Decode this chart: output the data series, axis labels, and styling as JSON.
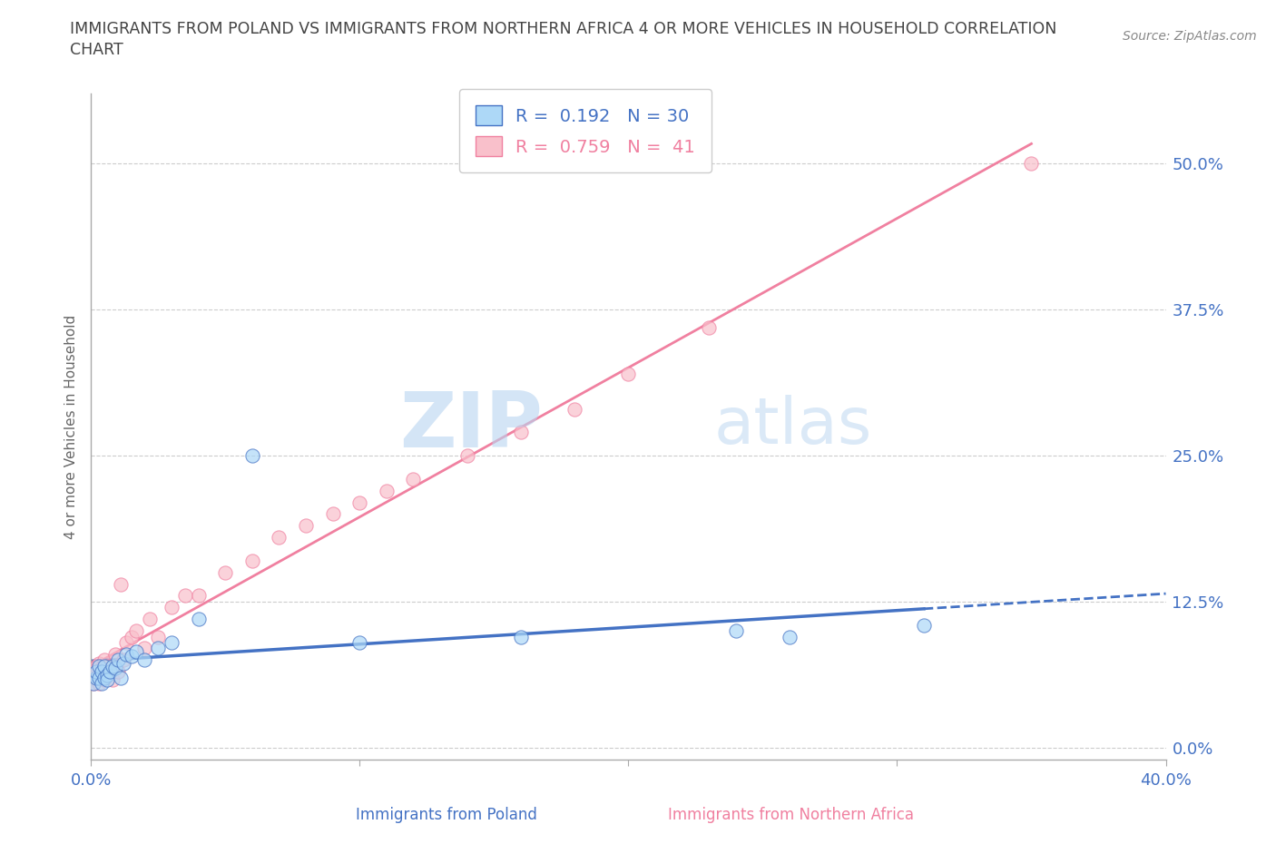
{
  "title_line1": "IMMIGRANTS FROM POLAND VS IMMIGRANTS FROM NORTHERN AFRICA 4 OR MORE VEHICLES IN HOUSEHOLD CORRELATION",
  "title_line2": "CHART",
  "source": "Source: ZipAtlas.com",
  "ylabel": "4 or more Vehicles in Household",
  "xlabel_poland": "Immigrants from Poland",
  "xlabel_africa": "Immigrants from Northern Africa",
  "xlim": [
    0.0,
    0.4
  ],
  "ylim": [
    -0.01,
    0.56
  ],
  "yticks": [
    0.0,
    0.125,
    0.25,
    0.375,
    0.5
  ],
  "ytick_labels": [
    "0.0%",
    "12.5%",
    "25.0%",
    "37.5%",
    "50.0%"
  ],
  "xtick_positions": [
    0.0,
    0.1,
    0.2,
    0.3,
    0.4
  ],
  "xtick_labels": [
    "0.0%",
    "",
    "",
    "",
    "40.0%"
  ],
  "R_poland": 0.192,
  "N_poland": 30,
  "R_africa": 0.759,
  "N_africa": 41,
  "color_poland": "#ADD8F7",
  "color_africa": "#F9C0CB",
  "line_color_poland": "#4472C4",
  "line_color_africa": "#F080A0",
  "tick_label_color": "#4472C4",
  "poland_scatter_x": [
    0.001,
    0.002,
    0.002,
    0.003,
    0.003,
    0.004,
    0.004,
    0.005,
    0.005,
    0.006,
    0.006,
    0.007,
    0.008,
    0.009,
    0.01,
    0.011,
    0.012,
    0.013,
    0.015,
    0.017,
    0.02,
    0.025,
    0.03,
    0.04,
    0.06,
    0.1,
    0.16,
    0.24,
    0.26,
    0.31
  ],
  "poland_scatter_y": [
    0.055,
    0.06,
    0.065,
    0.06,
    0.07,
    0.055,
    0.065,
    0.06,
    0.07,
    0.062,
    0.058,
    0.065,
    0.07,
    0.068,
    0.075,
    0.06,
    0.072,
    0.08,
    0.078,
    0.082,
    0.075,
    0.085,
    0.09,
    0.11,
    0.25,
    0.09,
    0.095,
    0.1,
    0.095,
    0.105
  ],
  "africa_scatter_x": [
    0.001,
    0.001,
    0.002,
    0.002,
    0.003,
    0.003,
    0.004,
    0.004,
    0.005,
    0.005,
    0.006,
    0.006,
    0.007,
    0.008,
    0.009,
    0.01,
    0.011,
    0.012,
    0.013,
    0.015,
    0.017,
    0.02,
    0.022,
    0.025,
    0.03,
    0.035,
    0.04,
    0.05,
    0.06,
    0.07,
    0.08,
    0.09,
    0.1,
    0.11,
    0.12,
    0.14,
    0.16,
    0.18,
    0.2,
    0.23,
    0.35
  ],
  "africa_scatter_y": [
    0.055,
    0.065,
    0.06,
    0.07,
    0.055,
    0.072,
    0.06,
    0.068,
    0.058,
    0.075,
    0.062,
    0.07,
    0.065,
    0.058,
    0.08,
    0.065,
    0.14,
    0.075,
    0.09,
    0.095,
    0.1,
    0.085,
    0.11,
    0.095,
    0.12,
    0.13,
    0.13,
    0.15,
    0.16,
    0.18,
    0.19,
    0.2,
    0.21,
    0.22,
    0.23,
    0.25,
    0.27,
    0.29,
    0.32,
    0.36,
    0.5
  ],
  "watermark_zip": "ZIP",
  "watermark_atlas": "atlas",
  "grid_color": "#CCCCCC",
  "spine_color": "#AAAAAA"
}
